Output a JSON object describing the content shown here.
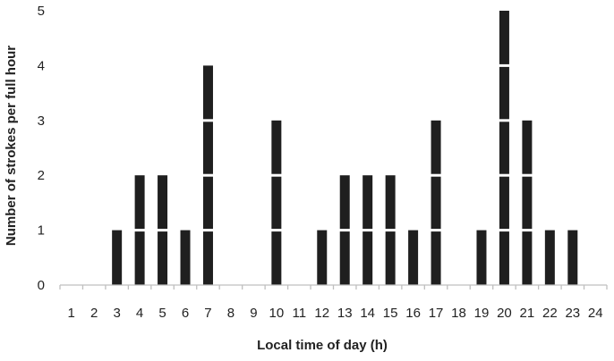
{
  "chart_data": {
    "type": "bar",
    "style": "stacked-unit-blocks",
    "title": "",
    "xlabel": "Local time of day (h)",
    "ylabel": "Number of strokes per full hour",
    "categories": [
      "1",
      "2",
      "3",
      "4",
      "5",
      "6",
      "7",
      "8",
      "9",
      "10",
      "11",
      "12",
      "13",
      "14",
      "15",
      "16",
      "17",
      "18",
      "19",
      "20",
      "21",
      "22",
      "23",
      "24"
    ],
    "values": [
      0,
      0,
      1,
      2,
      2,
      1,
      4,
      0,
      0,
      3,
      0,
      1,
      2,
      2,
      2,
      1,
      3,
      0,
      1,
      5,
      3,
      1,
      1,
      0
    ],
    "ylim": [
      0,
      5
    ],
    "yticks": [
      "0",
      "1",
      "2",
      "3",
      "4",
      "5"
    ],
    "grid": false,
    "legend": "none",
    "colors": {
      "bar": "#1f1f1f",
      "axis": "#bfbfbf",
      "text": "#222222"
    }
  }
}
